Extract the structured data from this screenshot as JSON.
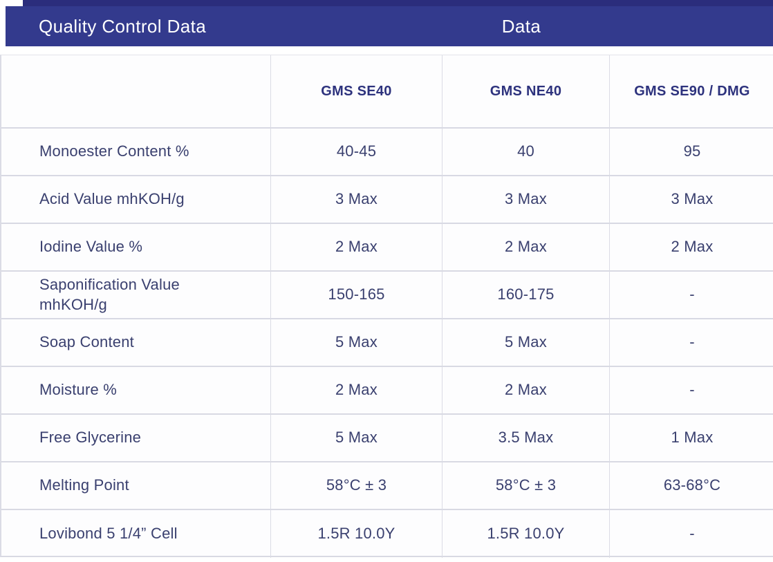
{
  "header": {
    "left_title": "Quality Control Data",
    "right_title": "Data"
  },
  "table": {
    "columns": [
      "",
      "GMS SE40",
      "GMS NE40",
      "GMS SE90 / DMG"
    ],
    "rows": [
      {
        "label": "Monoester Content %",
        "values": [
          "40-45",
          "40",
          "95"
        ]
      },
      {
        "label": "Acid Value mhKOH/g",
        "values": [
          "3 Max",
          "3 Max",
          "3 Max"
        ]
      },
      {
        "label": "Iodine Value %",
        "values": [
          "2 Max",
          "2 Max",
          "2 Max"
        ]
      },
      {
        "label": "Saponification Value mhKOH/g",
        "values": [
          "150-165",
          "160-175",
          "-"
        ]
      },
      {
        "label": "Soap Content",
        "values": [
          "5 Max",
          "5 Max",
          "-"
        ]
      },
      {
        "label": "Moisture %",
        "values": [
          "2 Max",
          "2 Max",
          "-"
        ]
      },
      {
        "label": "Free Glycerine",
        "values": [
          "5 Max",
          "3.5 Max",
          "1 Max"
        ]
      },
      {
        "label": "Melting Point",
        "values": [
          "58°C ± 3",
          "58°C ± 3",
          "63-68°C"
        ]
      },
      {
        "label": "Lovibond 5 1/4” Cell",
        "values": [
          "1.5R 10.0Y",
          "1.5R 10.0Y",
          "-"
        ]
      }
    ]
  },
  "colors": {
    "header_bar": "#333A8D",
    "top_strip": "#2B2D7C",
    "header_text": "#FFFFFF",
    "column_header_text": "#2D327D",
    "cell_text": "#3A406F",
    "grid_line": "#D8D9E3"
  }
}
